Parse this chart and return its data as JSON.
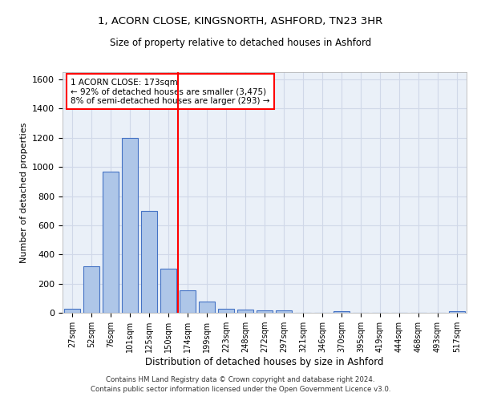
{
  "title_line1": "1, ACORN CLOSE, KINGSNORTH, ASHFORD, TN23 3HR",
  "title_line2": "Size of property relative to detached houses in Ashford",
  "xlabel": "Distribution of detached houses by size in Ashford",
  "ylabel": "Number of detached properties",
  "footnote": "Contains HM Land Registry data © Crown copyright and database right 2024.\nContains public sector information licensed under the Open Government Licence v3.0.",
  "bin_labels": [
    "27sqm",
    "52sqm",
    "76sqm",
    "101sqm",
    "125sqm",
    "150sqm",
    "174sqm",
    "199sqm",
    "223sqm",
    "248sqm",
    "272sqm",
    "297sqm",
    "321sqm",
    "346sqm",
    "370sqm",
    "395sqm",
    "419sqm",
    "444sqm",
    "468sqm",
    "493sqm",
    "517sqm"
  ],
  "bar_values": [
    30,
    320,
    970,
    1200,
    700,
    300,
    155,
    75,
    30,
    20,
    15,
    15,
    0,
    0,
    10,
    0,
    0,
    0,
    0,
    0,
    10
  ],
  "bar_color": "#aec6e8",
  "bar_edge_color": "#4472c4",
  "grid_color": "#d0d8e8",
  "background_color": "#eaf0f8",
  "vline_x_idx": 6,
  "vline_color": "red",
  "annotation_text": "1 ACORN CLOSE: 173sqm\n← 92% of detached houses are smaller (3,475)\n8% of semi-detached houses are larger (293) →",
  "ylim": [
    0,
    1650
  ],
  "yticks": [
    0,
    200,
    400,
    600,
    800,
    1000,
    1200,
    1400,
    1600
  ]
}
